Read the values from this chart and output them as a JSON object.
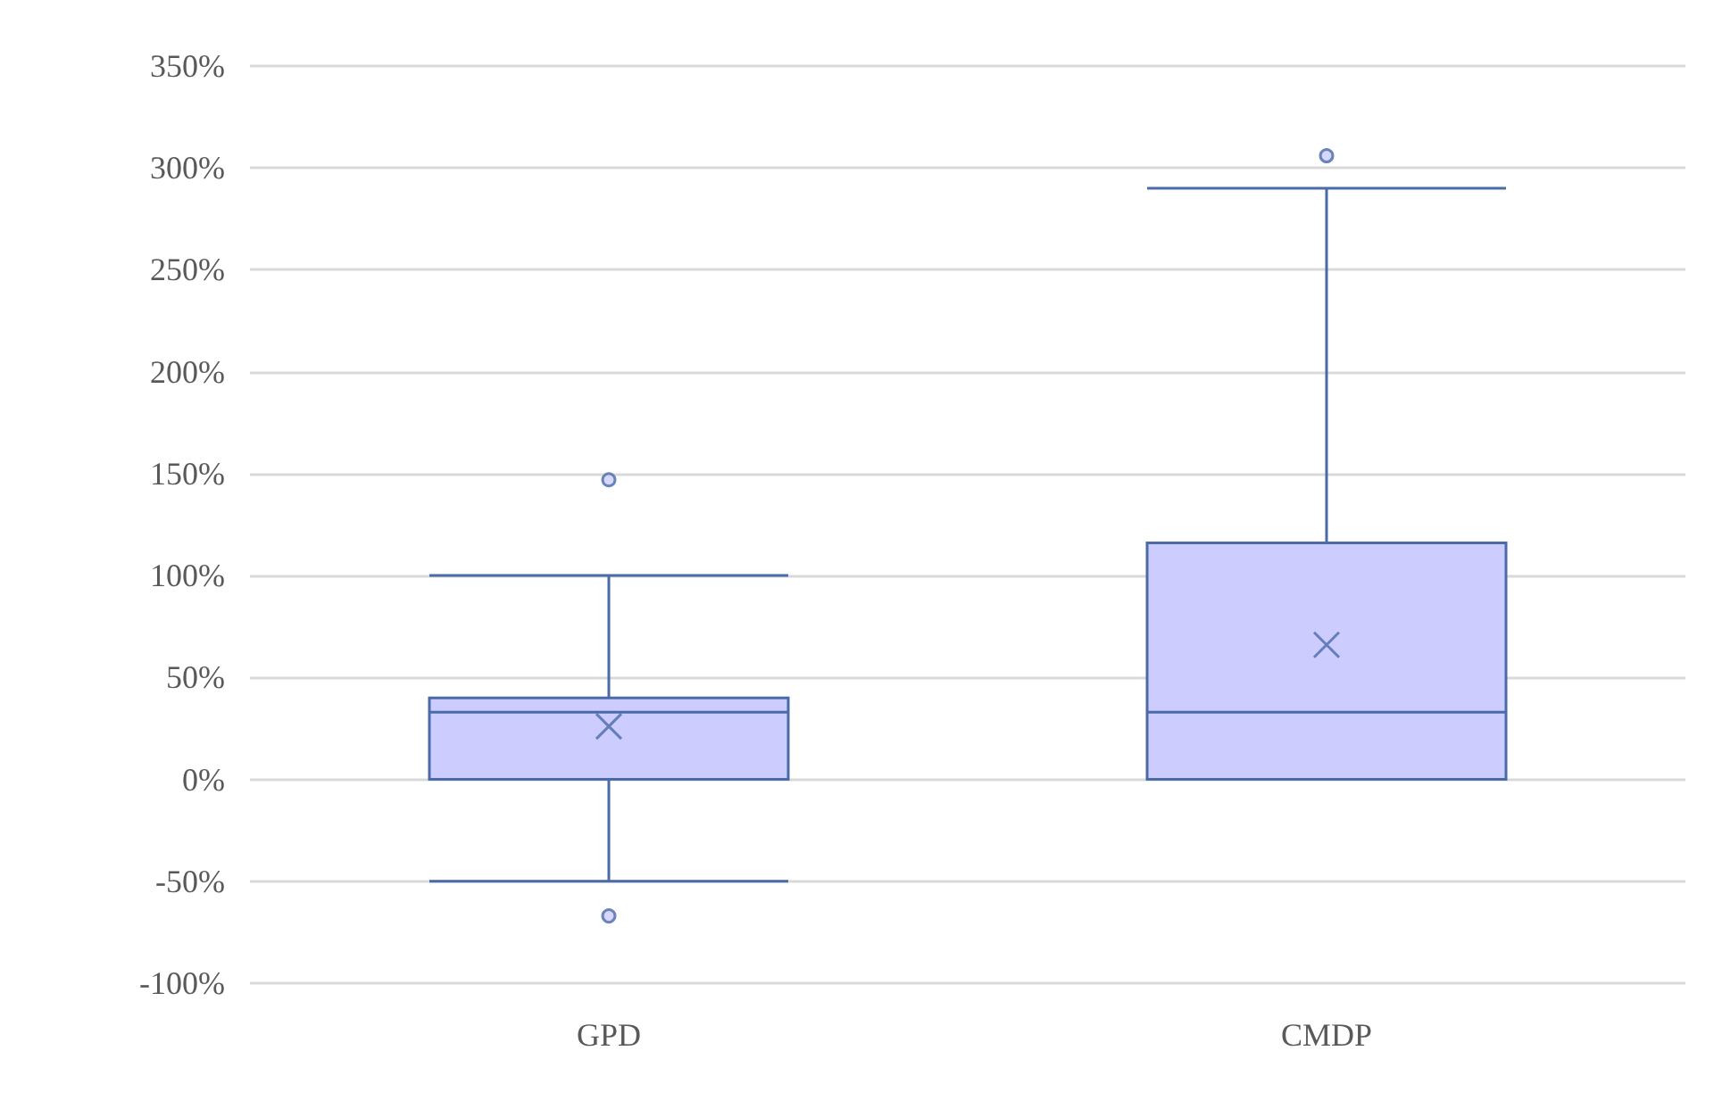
{
  "chart_data": {
    "type": "box",
    "categories": [
      "GPD",
      "CMDP"
    ],
    "series": [
      {
        "color": "#4a6aa8",
        "boxes": [
          {
            "low": -50,
            "q1": 0,
            "median": 33,
            "q3": 40,
            "high": 100,
            "mean": 26,
            "outliers": [
              147,
              -67
            ]
          },
          {
            "low": 0,
            "q1": 0,
            "median": 33,
            "q3": 116,
            "high": 290,
            "mean": 66,
            "outliers": [
              306
            ]
          }
        ]
      }
    ],
    "ylim": [
      -100,
      350
    ],
    "yticks": [
      {
        "value": -100,
        "label": "-100%"
      },
      {
        "value": -50,
        "label": "-50%"
      },
      {
        "value": 0,
        "label": "0%"
      },
      {
        "value": 50,
        "label": "50%"
      },
      {
        "value": 100,
        "label": "100%"
      },
      {
        "value": 150,
        "label": "150%"
      },
      {
        "value": 200,
        "label": "200%"
      },
      {
        "value": 250,
        "label": "250%"
      },
      {
        "value": 300,
        "label": "300%"
      },
      {
        "value": 350,
        "label": "350%"
      }
    ],
    "grid": "y"
  }
}
